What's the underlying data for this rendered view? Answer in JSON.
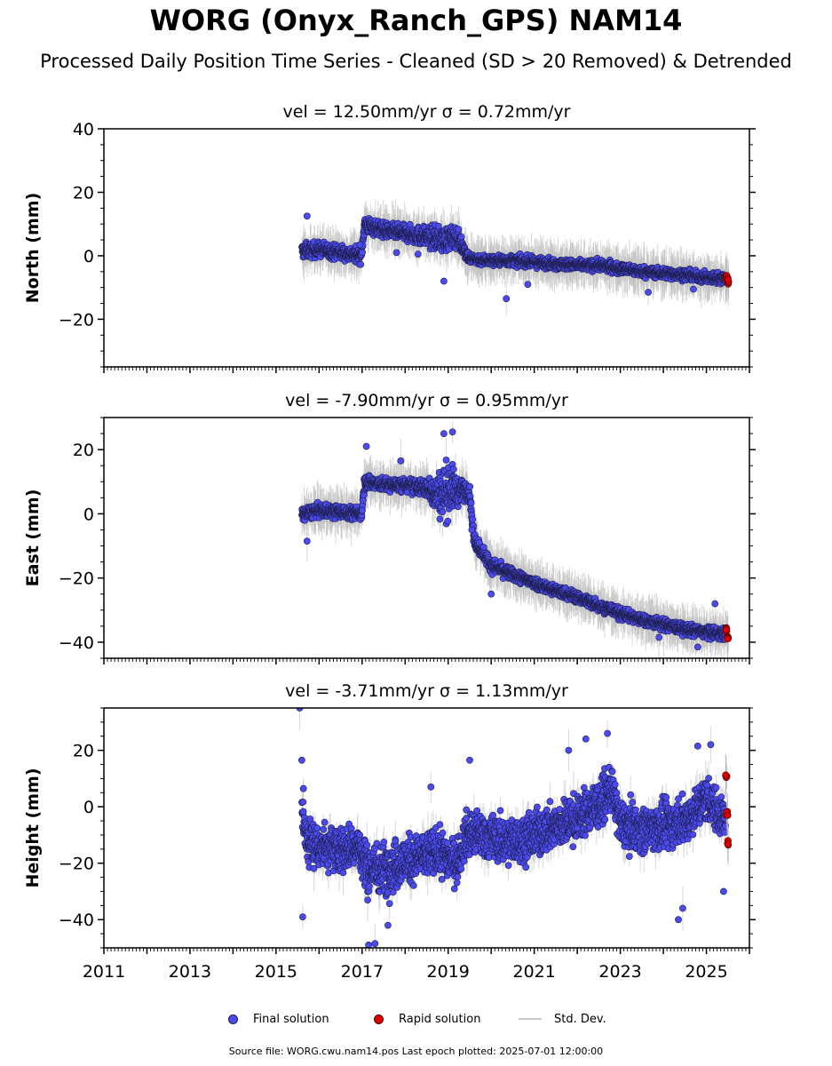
{
  "title": "WORG (Onyx_Ranch_GPS) NAM14",
  "subtitle": "Processed Daily Position Time Series - Cleaned (SD > 20 Removed) & Detrended",
  "legend": {
    "final": "Final solution",
    "rapid": "Rapid solution",
    "stddev": "Std. Dev."
  },
  "footer": "Source file: WORG.cwu.nam14.pos  Last epoch plotted: 2025-07-01 12:00:00",
  "colors": {
    "final": "#4a4aee",
    "final_edge": "#1e1e4a",
    "rapid": "#dd0000",
    "stddev": "#b8b8b8"
  },
  "chart_data": [
    {
      "type": "scatter",
      "panel": "north",
      "title": "vel = 12.50mm/yr   σ = 0.72mm/yr",
      "ylabel": "North (mm)",
      "xlabel": "",
      "xlim": [
        2011,
        2026
      ],
      "ylim": [
        -35,
        40
      ],
      "yticks": [
        -20,
        0,
        20,
        40
      ],
      "xticks": [],
      "xtick_labels": [],
      "series": [
        {
          "name": "Final solution",
          "x": [
            2015.6,
            2016.0,
            2016.5,
            2016.99,
            2017.05,
            2017.5,
            2018.0,
            2018.5,
            2018.9,
            2019.2,
            2019.5,
            2020.0,
            2020.5,
            2021.0,
            2021.5,
            2022.0,
            2022.5,
            2023.0,
            2023.5,
            2024.0,
            2024.5,
            2025.0,
            2025.45
          ],
          "y": [
            1.5,
            2.0,
            1.0,
            0.0,
            10.0,
            8.0,
            7.0,
            6.0,
            5.0,
            6.0,
            -1.0,
            -1.5,
            -1.5,
            -2.0,
            -2.5,
            -3.0,
            -3.0,
            -4.0,
            -5.0,
            -5.5,
            -6.0,
            -7.0,
            -7.0
          ],
          "band": [
            3.0,
            2.8,
            2.8,
            2.8,
            3.2,
            3.0,
            3.0,
            3.8,
            5.0,
            4.0,
            2.2,
            2.0,
            2.0,
            2.0,
            2.0,
            2.0,
            2.0,
            2.0,
            2.0,
            2.0,
            2.0,
            2.0,
            2.2
          ],
          "outliers": [
            {
              "x": 2015.72,
              "y": 12.5
            },
            {
              "x": 2016.95,
              "y": 3.5
            },
            {
              "x": 2017.8,
              "y": 1.0
            },
            {
              "x": 2018.3,
              "y": 0.5
            },
            {
              "x": 2018.9,
              "y": -8.0
            },
            {
              "x": 2020.35,
              "y": -13.5
            },
            {
              "x": 2020.85,
              "y": -9.0
            },
            {
              "x": 2023.65,
              "y": -11.5
            },
            {
              "x": 2024.7,
              "y": -10.5
            }
          ]
        },
        {
          "name": "Rapid solution",
          "x": [
            2025.46,
            2025.5
          ],
          "y": [
            -7.0,
            -8.0
          ],
          "band": [
            1.5,
            1.5
          ],
          "outliers": []
        }
      ]
    },
    {
      "type": "scatter",
      "panel": "east",
      "title": "vel = -7.90mm/yr   σ = 0.95mm/yr",
      "ylabel": "East (mm)",
      "xlabel": "",
      "xlim": [
        2011,
        2026
      ],
      "ylim": [
        -45,
        30
      ],
      "yticks": [
        -40,
        -20,
        0,
        20
      ],
      "xticks": [],
      "xtick_labels": [],
      "series": [
        {
          "name": "Final solution",
          "x": [
            2015.6,
            2016.0,
            2016.5,
            2016.99,
            2017.05,
            2017.5,
            2018.0,
            2018.5,
            2018.8,
            2019.0,
            2019.25,
            2019.5,
            2019.6,
            2020.0,
            2020.5,
            2021.0,
            2021.5,
            2022.0,
            2022.5,
            2023.0,
            2023.5,
            2024.0,
            2024.5,
            2025.0,
            2025.45
          ],
          "y": [
            0.0,
            1.0,
            0.5,
            0.0,
            10.0,
            9.0,
            9.0,
            8.0,
            6.0,
            8.0,
            7.0,
            7.0,
            -8.0,
            -16.0,
            -19.0,
            -21.5,
            -24.0,
            -26.0,
            -28.5,
            -31.0,
            -33.0,
            -34.5,
            -36.0,
            -37.0,
            -37.5
          ],
          "band": [
            2.5,
            2.5,
            2.5,
            2.5,
            3.0,
            2.5,
            2.5,
            3.5,
            9.0,
            11.0,
            5.0,
            3.0,
            3.0,
            2.5,
            2.3,
            2.2,
            2.2,
            2.2,
            2.2,
            2.2,
            2.2,
            2.2,
            2.2,
            2.2,
            2.5
          ],
          "outliers": [
            {
              "x": 2015.72,
              "y": -8.5
            },
            {
              "x": 2017.1,
              "y": 21.0
            },
            {
              "x": 2017.9,
              "y": 16.5
            },
            {
              "x": 2018.9,
              "y": 25.0
            },
            {
              "x": 2019.1,
              "y": 25.5
            },
            {
              "x": 2020.0,
              "y": -25.0
            },
            {
              "x": 2023.9,
              "y": -38.5
            },
            {
              "x": 2024.8,
              "y": -41.5
            },
            {
              "x": 2025.2,
              "y": -28.0
            },
            {
              "x": 2019.55,
              "y": -5.0
            }
          ]
        },
        {
          "name": "Rapid solution",
          "x": [
            2025.46,
            2025.5
          ],
          "y": [
            -36.0,
            -38.5
          ],
          "band": [
            1.5,
            1.5
          ],
          "outliers": []
        }
      ]
    },
    {
      "type": "scatter",
      "panel": "height",
      "title": "vel = -3.71mm/yr   σ = 1.13mm/yr",
      "ylabel": "Height (mm)",
      "xlabel": "",
      "xlim": [
        2011,
        2026
      ],
      "ylim": [
        -50,
        35
      ],
      "yticks": [
        -40,
        -20,
        0,
        20
      ],
      "xticks": [
        2011,
        2013,
        2015,
        2017,
        2019,
        2021,
        2023,
        2025
      ],
      "xtick_labels": [
        "2011",
        "2013",
        "2015",
        "2017",
        "2019",
        "2021",
        "2023",
        "2025"
      ],
      "series": [
        {
          "name": "Final solution",
          "x": [
            2015.6,
            2015.7,
            2016.0,
            2016.5,
            2016.9,
            2017.1,
            2017.5,
            2017.9,
            2018.3,
            2018.8,
            2019.2,
            2019.4,
            2019.8,
            2020.2,
            2020.6,
            2021.0,
            2021.5,
            2022.0,
            2022.5,
            2022.8,
            2023.0,
            2023.5,
            2024.0,
            2024.5,
            2025.0,
            2025.45
          ],
          "y": [
            0.0,
            -12.0,
            -14.0,
            -15.0,
            -14.0,
            -22.0,
            -22.0,
            -20.0,
            -18.0,
            -16.0,
            -20.0,
            -10.0,
            -10.0,
            -12.0,
            -12.0,
            -10.0,
            -7.0,
            -4.0,
            1.0,
            6.0,
            -6.0,
            -8.0,
            -7.0,
            -5.0,
            3.0,
            -5.0
          ],
          "band": [
            10.0,
            11.0,
            10.0,
            10.0,
            10.0,
            12.0,
            11.0,
            11.0,
            10.0,
            10.0,
            9.0,
            10.0,
            10.0,
            10.0,
            10.0,
            10.0,
            10.0,
            10.0,
            10.0,
            9.0,
            10.0,
            10.0,
            10.0,
            10.0,
            10.0,
            9.0
          ],
          "outliers": [
            {
              "x": 2015.55,
              "y": 35.0
            },
            {
              "x": 2015.6,
              "y": 16.5
            },
            {
              "x": 2015.62,
              "y": -39.0
            },
            {
              "x": 2017.15,
              "y": -49.0
            },
            {
              "x": 2017.3,
              "y": -48.5
            },
            {
              "x": 2017.6,
              "y": -42.0
            },
            {
              "x": 2018.6,
              "y": 7.0
            },
            {
              "x": 2019.5,
              "y": 16.5
            },
            {
              "x": 2021.8,
              "y": 20.0
            },
            {
              "x": 2022.2,
              "y": 24.0
            },
            {
              "x": 2022.7,
              "y": 26.0
            },
            {
              "x": 2024.35,
              "y": -40.0
            },
            {
              "x": 2024.45,
              "y": -36.0
            },
            {
              "x": 2024.8,
              "y": 21.5
            },
            {
              "x": 2025.1,
              "y": 22.0
            },
            {
              "x": 2025.4,
              "y": -30.0
            }
          ]
        },
        {
          "name": "Rapid solution",
          "x": [
            2025.46,
            2025.48,
            2025.5
          ],
          "y": [
            11.0,
            -2.0,
            -13.0
          ],
          "band": [
            2.0,
            2.0,
            2.0
          ],
          "outliers": []
        }
      ]
    }
  ]
}
